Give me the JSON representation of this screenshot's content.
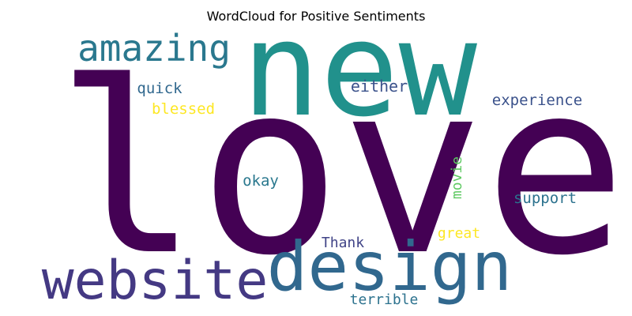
{
  "title": "WordCloud for Positive Sentiments",
  "words": [
    {
      "text": "love",
      "color": "#440154"
    },
    {
      "text": "new",
      "color": "#21918c"
    },
    {
      "text": "design",
      "color": "#31688e"
    },
    {
      "text": "website",
      "color": "#443983"
    },
    {
      "text": "amazing",
      "color": "#2a788e"
    },
    {
      "text": "quick",
      "color": "#31688e"
    },
    {
      "text": "either",
      "color": "#3b528b"
    },
    {
      "text": "experience",
      "color": "#3b528b"
    },
    {
      "text": "blessed",
      "color": "#fde725"
    },
    {
      "text": "okay",
      "color": "#2a788e"
    },
    {
      "text": "movie",
      "color": "#5ec962"
    },
    {
      "text": "support",
      "color": "#2c728e"
    },
    {
      "text": "Thank",
      "color": "#414487"
    },
    {
      "text": "great",
      "color": "#fde725"
    },
    {
      "text": "terrible",
      "color": "#2c728e"
    }
  ]
}
